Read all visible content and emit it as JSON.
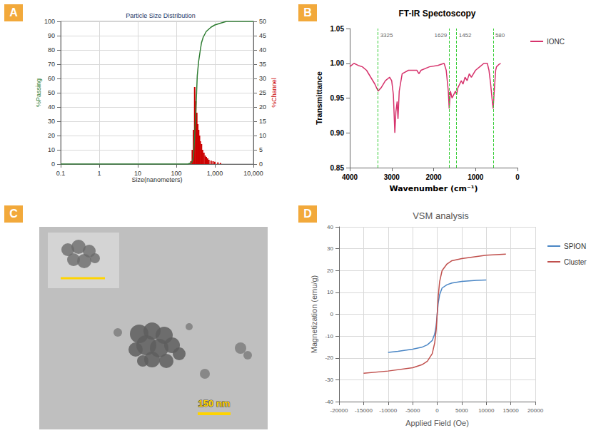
{
  "chart_data": [
    {
      "panel": "A",
      "type": "line",
      "title": "Particle Size Distribution",
      "xlabel": "Size(nanometers)",
      "ylabel": "%Passing",
      "y2label": "%Channel",
      "log": "x",
      "grid": true,
      "xlim": [
        0.1,
        10000
      ],
      "xticks": [
        0.1,
        1,
        10,
        100,
        {
          "value": 1000,
          "label": "1,000"
        },
        {
          "value": 10000,
          "label": "10,000"
        }
      ],
      "ylim": [
        0,
        100
      ],
      "yticks": [
        0,
        10,
        20,
        30,
        40,
        50,
        60,
        70,
        80,
        90,
        100
      ],
      "y2lim": [
        0,
        50
      ],
      "y2ticks": [
        0,
        5,
        10,
        15,
        20,
        25,
        30,
        35,
        40,
        45,
        50
      ],
      "series": [
        {
          "type": "line",
          "color": "#2e7d32",
          "x": [
            0.1,
            1,
            10,
            100,
            200,
            250,
            280,
            300,
            330,
            350,
            380,
            420,
            450,
            500,
            600,
            800,
            1000,
            1500,
            2000,
            3000,
            10000
          ],
          "values": [
            0,
            0,
            0,
            0,
            0,
            1,
            5,
            20,
            45,
            62,
            72,
            80,
            85,
            89,
            93,
            96,
            97.5,
            99,
            100,
            100,
            100
          ]
        },
        {
          "type": "bar",
          "axis": "y2",
          "color": "#cc0000",
          "x": [
            240,
            260,
            280,
            300,
            320,
            340,
            360,
            380,
            400,
            420,
            450,
            480,
            520,
            560,
            600,
            650,
            700,
            800,
            900,
            1000,
            1200,
            1400
          ],
          "values": [
            1,
            5,
            12,
            27,
            22,
            18,
            14,
            12,
            10,
            8,
            7,
            5,
            4,
            3,
            2.5,
            2,
            1.5,
            1.2,
            1,
            0.8,
            0.6,
            0.4
          ]
        }
      ]
    },
    {
      "panel": "B",
      "type": "line",
      "title": "FT-IR Spectoscopy",
      "xlabel": "Wavenumber (cm⁻¹)",
      "ylabel": "Transmittance",
      "grid": false,
      "legend": "right",
      "xlim": [
        4000,
        0
      ],
      "xticks": [
        4000,
        3000,
        2000,
        1000,
        0
      ],
      "ylim": [
        0.85,
        1.05
      ],
      "yticks": [
        0.85,
        {
          "value": 0.9,
          "label": "0.90"
        },
        0.95,
        {
          "value": 1.0,
          "label": "1.00"
        },
        1.05
      ],
      "vlines": [
        3325,
        1629,
        1452,
        580
      ],
      "series": [
        {
          "name": "IONC",
          "color": "#d6336c",
          "x": [
            4000,
            3900,
            3800,
            3700,
            3600,
            3500,
            3400,
            3325,
            3250,
            3150,
            3050,
            3000,
            2960,
            2925,
            2900,
            2870,
            2850,
            2820,
            2750,
            2600,
            2400,
            2350,
            2300,
            2100,
            1900,
            1750,
            1700,
            1650,
            1629,
            1600,
            1560,
            1520,
            1480,
            1452,
            1420,
            1380,
            1340,
            1300,
            1250,
            1200,
            1150,
            1100,
            1050,
            1000,
            900,
            800,
            720,
            680,
            640,
            600,
            580,
            560,
            520,
            500,
            450,
            400
          ],
          "values": [
            0.995,
            1.0,
            0.997,
            0.995,
            0.99,
            0.98,
            0.97,
            0.96,
            0.965,
            0.975,
            0.98,
            0.975,
            0.955,
            0.9,
            0.93,
            0.945,
            0.92,
            0.96,
            0.985,
            0.99,
            0.99,
            0.985,
            0.99,
            0.995,
            0.997,
            1.0,
            0.99,
            0.96,
            0.935,
            0.96,
            0.95,
            0.955,
            0.96,
            0.955,
            0.965,
            0.97,
            0.975,
            0.97,
            0.98,
            0.975,
            0.985,
            0.98,
            0.985,
            0.99,
            0.995,
            1.0,
            1.0,
            0.99,
            0.97,
            0.945,
            0.935,
            0.955,
            0.99,
            0.995,
            0.998,
            1.0
          ]
        }
      ]
    },
    {
      "panel": "C",
      "type": "image",
      "scale_bar": "150 nm"
    },
    {
      "panel": "D",
      "type": "line",
      "title": "VSM analysis",
      "xlabel": "Applied Field (Oe)",
      "ylabel": "Magnetization (emu/g)",
      "grid": true,
      "legend": "right",
      "xlim": [
        -20000,
        20000
      ],
      "xticks": [
        -20000,
        -15000,
        -10000,
        -5000,
        0,
        5000,
        10000,
        15000,
        20000
      ],
      "ylim": [
        -40,
        40
      ],
      "yticks": [
        -40,
        -30,
        -20,
        -10,
        0,
        10,
        20,
        30,
        40
      ],
      "series": [
        {
          "name": "SPION",
          "color": "#4a86c5",
          "x": [
            -10000,
            -8000,
            -5000,
            -3000,
            -2000,
            -1000,
            -500,
            -200,
            0,
            200,
            500,
            1000,
            2000,
            3000,
            5000,
            8000,
            10000
          ],
          "values": [
            -17.5,
            -17,
            -16,
            -15,
            -14,
            -12,
            -9,
            -5,
            0,
            5,
            9,
            12,
            13.5,
            14.3,
            15,
            15.5,
            15.7
          ]
        },
        {
          "name": "Cluster",
          "color": "#c0504d",
          "x": [
            -15000,
            -10000,
            -5000,
            -3000,
            -2000,
            -1000,
            -500,
            -200,
            0,
            200,
            500,
            1000,
            2000,
            3000,
            5000,
            10000,
            14000
          ],
          "values": [
            -27,
            -26,
            -24.5,
            -23,
            -21.5,
            -18,
            -13,
            -7,
            0,
            8,
            15,
            20,
            23,
            24.5,
            25.5,
            27,
            27.5
          ]
        }
      ]
    }
  ]
}
